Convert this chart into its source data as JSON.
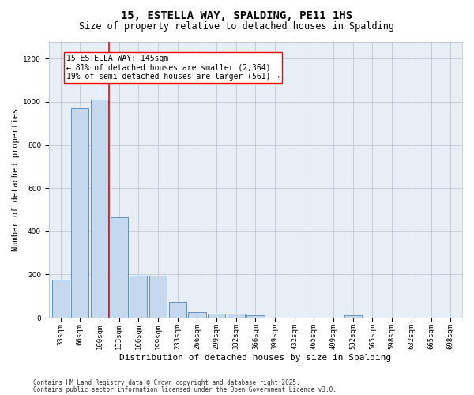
{
  "title": "15, ESTELLA WAY, SPALDING, PE11 1HS",
  "subtitle": "Size of property relative to detached houses in Spalding",
  "xlabel": "Distribution of detached houses by size in Spalding",
  "ylabel": "Number of detached properties",
  "categories": [
    "33sqm",
    "66sqm",
    "100sqm",
    "133sqm",
    "166sqm",
    "199sqm",
    "233sqm",
    "266sqm",
    "299sqm",
    "332sqm",
    "366sqm",
    "399sqm",
    "432sqm",
    "465sqm",
    "499sqm",
    "532sqm",
    "565sqm",
    "598sqm",
    "632sqm",
    "665sqm",
    "698sqm"
  ],
  "values": [
    175,
    970,
    1010,
    465,
    195,
    195,
    75,
    25,
    20,
    17,
    10,
    0,
    0,
    0,
    0,
    13,
    0,
    0,
    0,
    0,
    0
  ],
  "bar_color": "#c5d8ee",
  "bar_edge_color": "#5585b5",
  "red_line_x": 2.5,
  "annotation_text": "15 ESTELLA WAY: 145sqm\n← 81% of detached houses are smaller (2,364)\n19% of semi-detached houses are larger (561) →",
  "ylim": [
    0,
    1280
  ],
  "yticks": [
    0,
    200,
    400,
    600,
    800,
    1000,
    1200
  ],
  "grid_color": "#c0c8d8",
  "background_color": "#e8eef6",
  "footer_line1": "Contains HM Land Registry data © Crown copyright and database right 2025.",
  "footer_line2": "Contains public sector information licensed under the Open Government Licence v3.0.",
  "title_fontsize": 10,
  "subtitle_fontsize": 8.5,
  "xlabel_fontsize": 8,
  "ylabel_fontsize": 7.5,
  "tick_fontsize": 6.5,
  "annotation_fontsize": 7,
  "footer_fontsize": 5.5
}
